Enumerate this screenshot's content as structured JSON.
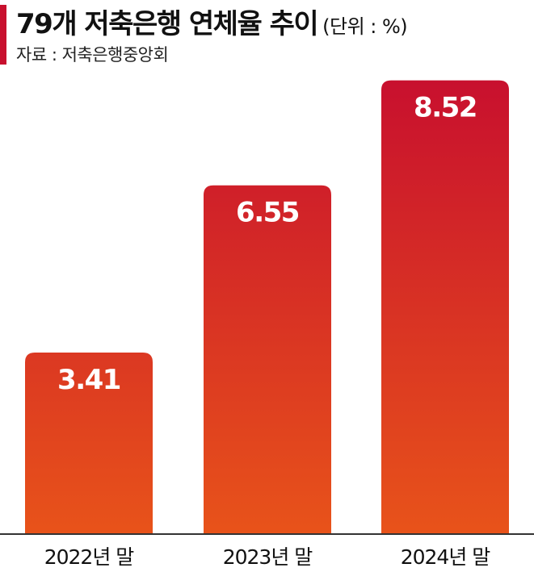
{
  "header": {
    "title": "79개 저축은행 연체율 추이",
    "unit": "(단위 : %)",
    "source": "자료 : 저축은행중앙회"
  },
  "colors": {
    "accent": "#c8102e",
    "bar_top": "#c8102e",
    "bar_bottom": "#e8531a",
    "axis": "#333333"
  },
  "chart_data": {
    "type": "bar",
    "title": "79개 저축은행 연체율 추이",
    "categories": [
      "2022년 말",
      "2023년 말",
      "2024년 말"
    ],
    "values": [
      3.41,
      6.55,
      8.52
    ],
    "data_labels": [
      "3.41",
      "6.55",
      "8.52"
    ],
    "xlabel": "",
    "ylabel": "",
    "grid": false,
    "legend": "none"
  }
}
